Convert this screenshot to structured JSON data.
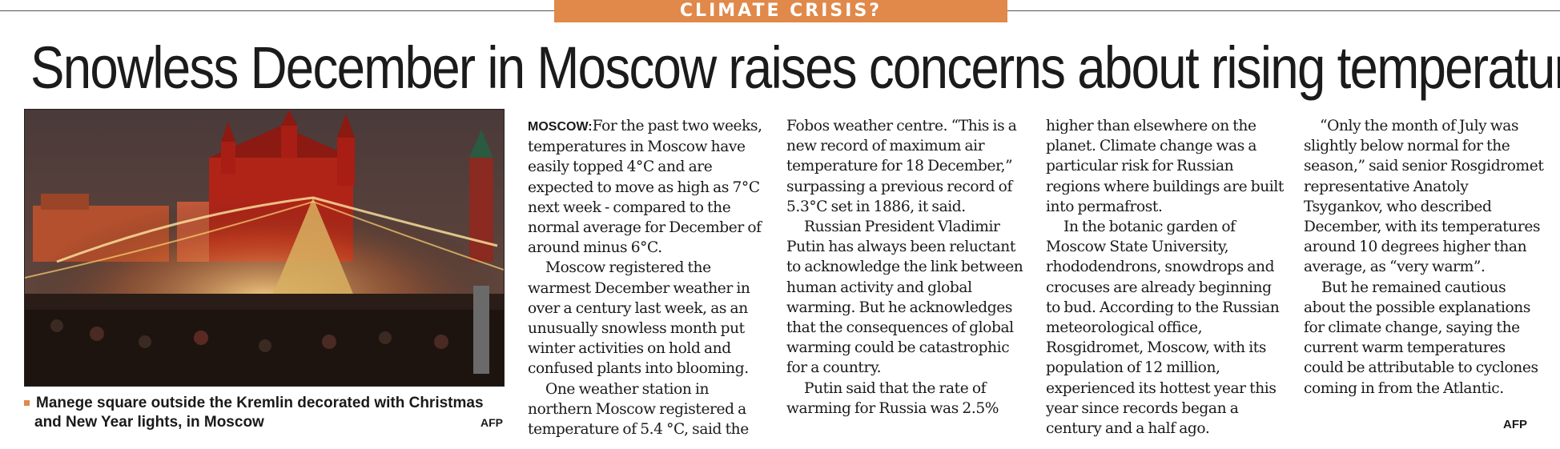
{
  "kicker": "CLIMATE CRISIS?",
  "headline": "Snowless December in Moscow raises concerns about rising temperatures",
  "photo": {
    "caption_line1": "Manege square outside the Kremlin decorated with Christmas",
    "caption_line2": "and New Year lights, in Moscow",
    "credit": "AFP"
  },
  "article": {
    "dateline": "MOSCOW:",
    "columns": [
      [
        "For the past two weeks, temperatures in Moscow have easily topped 4°C and are expected to move as high as 7°C next week - compared to the normal average for December of around minus 6°C.",
        "Moscow registered the warmest December weather in over a century last week, as an unusually snowless month put winter activities on hold and confused plants into blooming.",
        "One weather station in northern Moscow registered a temperature of 5.4 °C, said the"
      ],
      [
        "Fobos weather centre. “This is a new record of maximum air temperature for 18 December,” surpassing a previous record of 5.3°C set in 1886, it said.",
        "Russian President Vladimir Putin has always been reluctant to acknowledge the link between human activity and global warming. But he acknowledges that the consequences of global warming could be catastrophic for a country.",
        "Putin said that the rate of warming for Russia was 2.5%"
      ],
      [
        "higher than elsewhere on the planet. Climate change was a particular risk for Russian regions where buildings are built into permafrost.",
        "In the botanic garden of Moscow State University, rhododendrons, snowdrops and crocuses are already beginning to bud. According to the Russian meteorological office, Rosgidromet, Moscow, with its population of 12 million, experienced its hottest year this year since records began a century and a half ago."
      ],
      [
        "“Only the month of July was slightly below normal for the season,” said senior Rosgidromet representative Anatoly Tsygankov, who described December, with its temperatures around 10 degrees higher than average, as “very warm”.",
        "But he remained cautious about the possible explanations for climate change, saying the current warm temperatures could be attributable to cyclones coming in from the Atlantic."
      ]
    ],
    "credit": "AFP"
  },
  "colors": {
    "accent": "#e0894a",
    "text": "#1a1a1a"
  }
}
